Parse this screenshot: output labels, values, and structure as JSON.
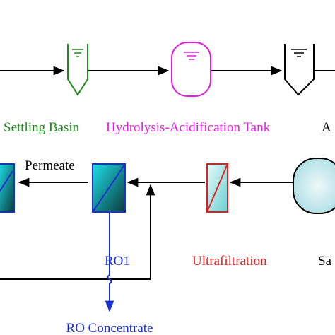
{
  "labels": {
    "settling_basin": "Settling Basin",
    "hydrolysis_tank": "Hydrolysis-Acidification Tank",
    "next_unit": "A",
    "permeate": "Permeate",
    "ro1": "RO1",
    "ultrafiltration": "Ultrafiltration",
    "sand_filter": "Sa",
    "ro_concentrate": "RO Concentrate"
  }
}
